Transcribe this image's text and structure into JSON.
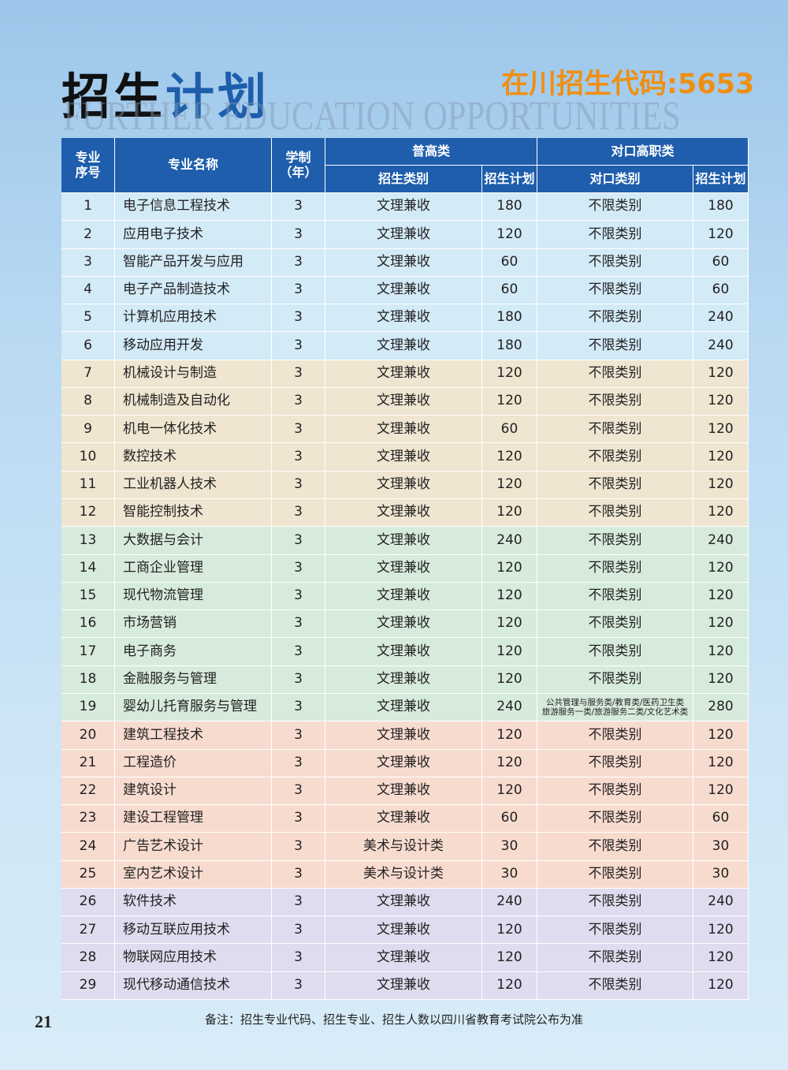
{
  "header": {
    "title_black": "招生",
    "title_blue": "计划",
    "code": "在川招生代码:5653",
    "watermark": "FURTHER EDUCATION OPPORTUNITIES"
  },
  "table": {
    "head": {
      "num": [
        "专业",
        "序号"
      ],
      "name": "专业名称",
      "years": [
        "学制",
        "（年）"
      ],
      "group1": "普高类",
      "group2": "对口高职类",
      "cat1": "招生类别",
      "plan1": "招生计划",
      "cat2": "对口类别",
      "plan2": "招生计划"
    },
    "groups": [
      {
        "color": "#d3eaf7",
        "rows": [
          [
            1,
            "电子信息工程技术",
            3,
            "文理兼收",
            180,
            "不限类别",
            180
          ],
          [
            2,
            "应用电子技术",
            3,
            "文理兼收",
            120,
            "不限类别",
            120
          ],
          [
            3,
            "智能产品开发与应用",
            3,
            "文理兼收",
            60,
            "不限类别",
            60
          ],
          [
            4,
            "电子产品制造技术",
            3,
            "文理兼收",
            60,
            "不限类别",
            60
          ],
          [
            5,
            "计算机应用技术",
            3,
            "文理兼收",
            180,
            "不限类别",
            240
          ],
          [
            6,
            "移动应用开发",
            3,
            "文理兼收",
            180,
            "不限类别",
            240
          ]
        ]
      },
      {
        "color": "#efe5d0",
        "rows": [
          [
            7,
            "机械设计与制造",
            3,
            "文理兼收",
            120,
            "不限类别",
            120
          ],
          [
            8,
            "机械制造及自动化",
            3,
            "文理兼收",
            120,
            "不限类别",
            120
          ],
          [
            9,
            "机电一体化技术",
            3,
            "文理兼收",
            60,
            "不限类别",
            120
          ],
          [
            10,
            "数控技术",
            3,
            "文理兼收",
            120,
            "不限类别",
            120
          ],
          [
            11,
            "工业机器人技术",
            3,
            "文理兼收",
            120,
            "不限类别",
            120
          ],
          [
            12,
            "智能控制技术",
            3,
            "文理兼收",
            120,
            "不限类别",
            120
          ]
        ]
      },
      {
        "color": "#d7ebdc",
        "rows": [
          [
            13,
            "大数据与会计",
            3,
            "文理兼收",
            240,
            "不限类别",
            240
          ],
          [
            14,
            "工商企业管理",
            3,
            "文理兼收",
            120,
            "不限类别",
            120
          ],
          [
            15,
            "现代物流管理",
            3,
            "文理兼收",
            120,
            "不限类别",
            120
          ],
          [
            16,
            "市场营销",
            3,
            "文理兼收",
            120,
            "不限类别",
            120
          ],
          [
            17,
            "电子商务",
            3,
            "文理兼收",
            120,
            "不限类别",
            120
          ],
          [
            18,
            "金融服务与管理",
            3,
            "文理兼收",
            120,
            "不限类别",
            120
          ],
          [
            19,
            "婴幼儿托育服务与管理",
            3,
            "文理兼收",
            240,
            [
              "公共管理与服务类/教育类/医药卫生类",
              "旅游服务一类/旅游服务二类/文化艺术类"
            ],
            280
          ]
        ]
      },
      {
        "color": "#f8dbcf",
        "rows": [
          [
            20,
            "建筑工程技术",
            3,
            "文理兼收",
            120,
            "不限类别",
            120
          ],
          [
            21,
            "工程造价",
            3,
            "文理兼收",
            120,
            "不限类别",
            120
          ],
          [
            22,
            "建筑设计",
            3,
            "文理兼收",
            120,
            "不限类别",
            120
          ],
          [
            23,
            "建设工程管理",
            3,
            "文理兼收",
            60,
            "不限类别",
            60
          ],
          [
            24,
            "广告艺术设计",
            3,
            "美术与设计类",
            30,
            "不限类别",
            30
          ],
          [
            25,
            "室内艺术设计",
            3,
            "美术与设计类",
            30,
            "不限类别",
            30
          ]
        ]
      },
      {
        "color": "#e0dbee",
        "rows": [
          [
            26,
            "软件技术",
            3,
            "文理兼收",
            240,
            "不限类别",
            240
          ],
          [
            27,
            "移动互联应用技术",
            3,
            "文理兼收",
            120,
            "不限类别",
            120
          ],
          [
            28,
            "物联网应用技术",
            3,
            "文理兼收",
            120,
            "不限类别",
            120
          ],
          [
            29,
            "现代移动通信技术",
            3,
            "文理兼收",
            120,
            "不限类别",
            120
          ]
        ]
      }
    ]
  },
  "footer": {
    "page": "21",
    "note": "备注：招生专业代码、招生专业、招生人数以四川省教育考试院公布为准"
  }
}
